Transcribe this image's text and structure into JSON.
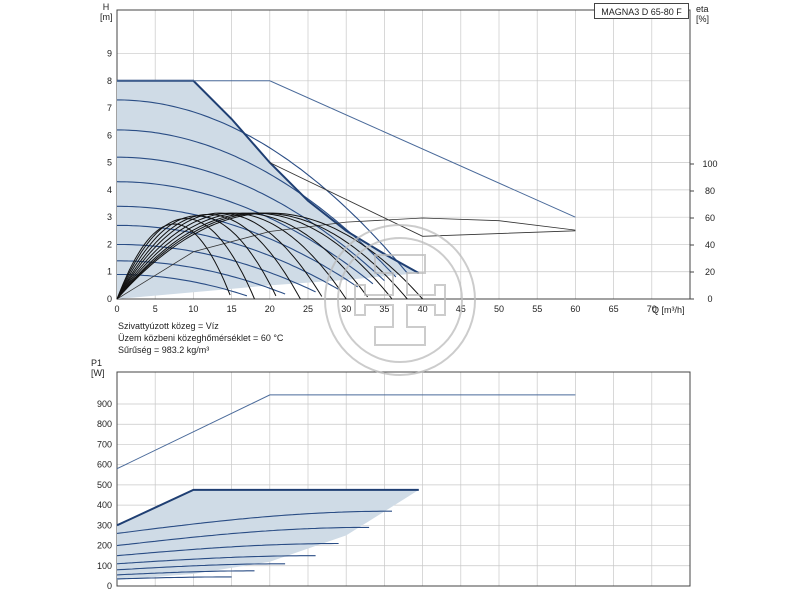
{
  "chart_data": [
    {
      "type": "line",
      "title": "MAGNA3 D 65-80 F",
      "xlabel": "Q [m³/h]",
      "ylabel": "H [m]",
      "y2label": "eta [%]",
      "xlim": [
        0,
        75
      ],
      "ylim": [
        0,
        10
      ],
      "y2lim": [
        0,
        100
      ],
      "x_ticks": [
        0,
        5,
        10,
        15,
        20,
        25,
        30,
        35,
        40,
        45,
        50,
        55,
        60,
        65,
        70
      ],
      "y_ticks": [
        0,
        1,
        2,
        3,
        4,
        5,
        6,
        7,
        8,
        9
      ],
      "y2_ticks": [
        0,
        20,
        40,
        60,
        80,
        100
      ],
      "grid": true,
      "operating_area": [
        [
          0,
          0
        ],
        [
          0,
          8
        ],
        [
          10,
          8
        ],
        [
          15,
          6.6
        ],
        [
          20,
          5.0
        ],
        [
          25,
          3.6
        ],
        [
          30,
          2.5
        ],
        [
          35,
          1.65
        ],
        [
          39.5,
          0.95
        ],
        [
          30,
          0.7
        ],
        [
          20,
          0.5
        ],
        [
          10,
          0.25
        ],
        [
          0,
          0
        ]
      ],
      "max_curve": [
        [
          0,
          8
        ],
        [
          10,
          8
        ],
        [
          15,
          6.6
        ],
        [
          20,
          5.0
        ],
        [
          25,
          3.6
        ],
        [
          30,
          2.5
        ],
        [
          35,
          1.65
        ],
        [
          39.5,
          0.95
        ]
      ],
      "max_curve_ext": [
        [
          0,
          8
        ],
        [
          20,
          8
        ],
        [
          60,
          3.0
        ]
      ],
      "max_curve_ext_lower": [
        [
          20,
          5.0
        ],
        [
          40,
          2.3
        ],
        [
          60,
          2.5
        ]
      ],
      "speed_curves": [
        {
          "h0": 7.3,
          "xmax": 38
        },
        {
          "h0": 6.2,
          "xmax": 36.5
        },
        {
          "h0": 5.2,
          "xmax": 35
        },
        {
          "h0": 4.3,
          "xmax": 33.5
        },
        {
          "h0": 3.4,
          "xmax": 31.5
        },
        {
          "h0": 2.7,
          "xmax": 29
        },
        {
          "h0": 2.0,
          "xmax": 26
        },
        {
          "h0": 1.4,
          "xmax": 22
        },
        {
          "h0": 0.9,
          "xmax": 17
        }
      ],
      "efficiency_curves": [
        {
          "xend": 15,
          "peak": 2.75,
          "xpeak": 7.5
        },
        {
          "xend": 18,
          "peak": 2.95,
          "xpeak": 9
        },
        {
          "xend": 21,
          "peak": 3.05,
          "xpeak": 10.5
        },
        {
          "xend": 24,
          "peak": 3.1,
          "xpeak": 12
        },
        {
          "xend": 27,
          "peak": 3.15,
          "xpeak": 13.5
        },
        {
          "xend": 30,
          "peak": 3.15,
          "xpeak": 15
        },
        {
          "xend": 33,
          "peak": 3.15,
          "xpeak": 16.5
        },
        {
          "xend": 36,
          "peak": 3.15,
          "xpeak": 18
        },
        {
          "xend": 38,
          "peak": 3.15,
          "xpeak": 19
        },
        {
          "xend": 40,
          "peak": 3.15,
          "xpeak": 20
        }
      ],
      "eta_line": [
        [
          0,
          0
        ],
        [
          10,
          35
        ],
        [
          20,
          50
        ],
        [
          30,
          57
        ],
        [
          40,
          60
        ],
        [
          50,
          58
        ],
        [
          60,
          51
        ]
      ]
    },
    {
      "type": "line",
      "ylabel": "P1 [W]",
      "xlim": [
        0,
        75
      ],
      "ylim": [
        0,
        1000
      ],
      "y_ticks": [
        0,
        100,
        200,
        300,
        400,
        500,
        600,
        700,
        800,
        900
      ],
      "grid": true,
      "operating_area": [
        [
          0,
          300
        ],
        [
          10,
          475
        ],
        [
          39.5,
          475
        ],
        [
          30,
          250
        ],
        [
          20,
          120
        ],
        [
          10,
          60
        ],
        [
          0,
          30
        ],
        [
          0,
          300
        ]
      ],
      "max_curve": [
        [
          0,
          300
        ],
        [
          10,
          475
        ],
        [
          39.5,
          475
        ]
      ],
      "max_curve_ext": [
        [
          0,
          580
        ],
        [
          20,
          945
        ],
        [
          60,
          945
        ]
      ],
      "speed_curves": [
        {
          "p0": 260,
          "xmax": 36,
          "pmax": 370
        },
        {
          "p0": 200,
          "xmax": 33,
          "pmax": 290
        },
        {
          "p0": 150,
          "xmax": 29,
          "pmax": 210
        },
        {
          "p0": 110,
          "xmax": 26,
          "pmax": 150
        },
        {
          "p0": 80,
          "xmax": 22,
          "pmax": 110
        },
        {
          "p0": 55,
          "xmax": 18,
          "pmax": 75
        },
        {
          "p0": 35,
          "xmax": 15,
          "pmax": 45
        }
      ]
    }
  ],
  "labels": {
    "h_title_top": "H",
    "h_title_unit": "[m]",
    "eta_title_top": "eta",
    "eta_title_unit": "[%]",
    "q_label": "Q [m³/h]",
    "p1_title_top": "P1",
    "p1_title_unit": "[W]",
    "model": "MAGNA3 D 65-80 F"
  },
  "medium_info": [
    "Szivattyúzott közeg = Víz",
    "Üzem közbeni közeghőmérséklet = 60 °C",
    "Sűrűség = 983.2 kg/m³"
  ],
  "colors": {
    "area_fill": "#cfdbe6",
    "curve": "#1f3f73",
    "curve_thin": "#2a4d85",
    "eff_curve": "#111111",
    "ext_line": "#4a6a9a",
    "grid": "#c8c8c8",
    "axis": "#444444",
    "watermark": "#bcbcbc"
  }
}
